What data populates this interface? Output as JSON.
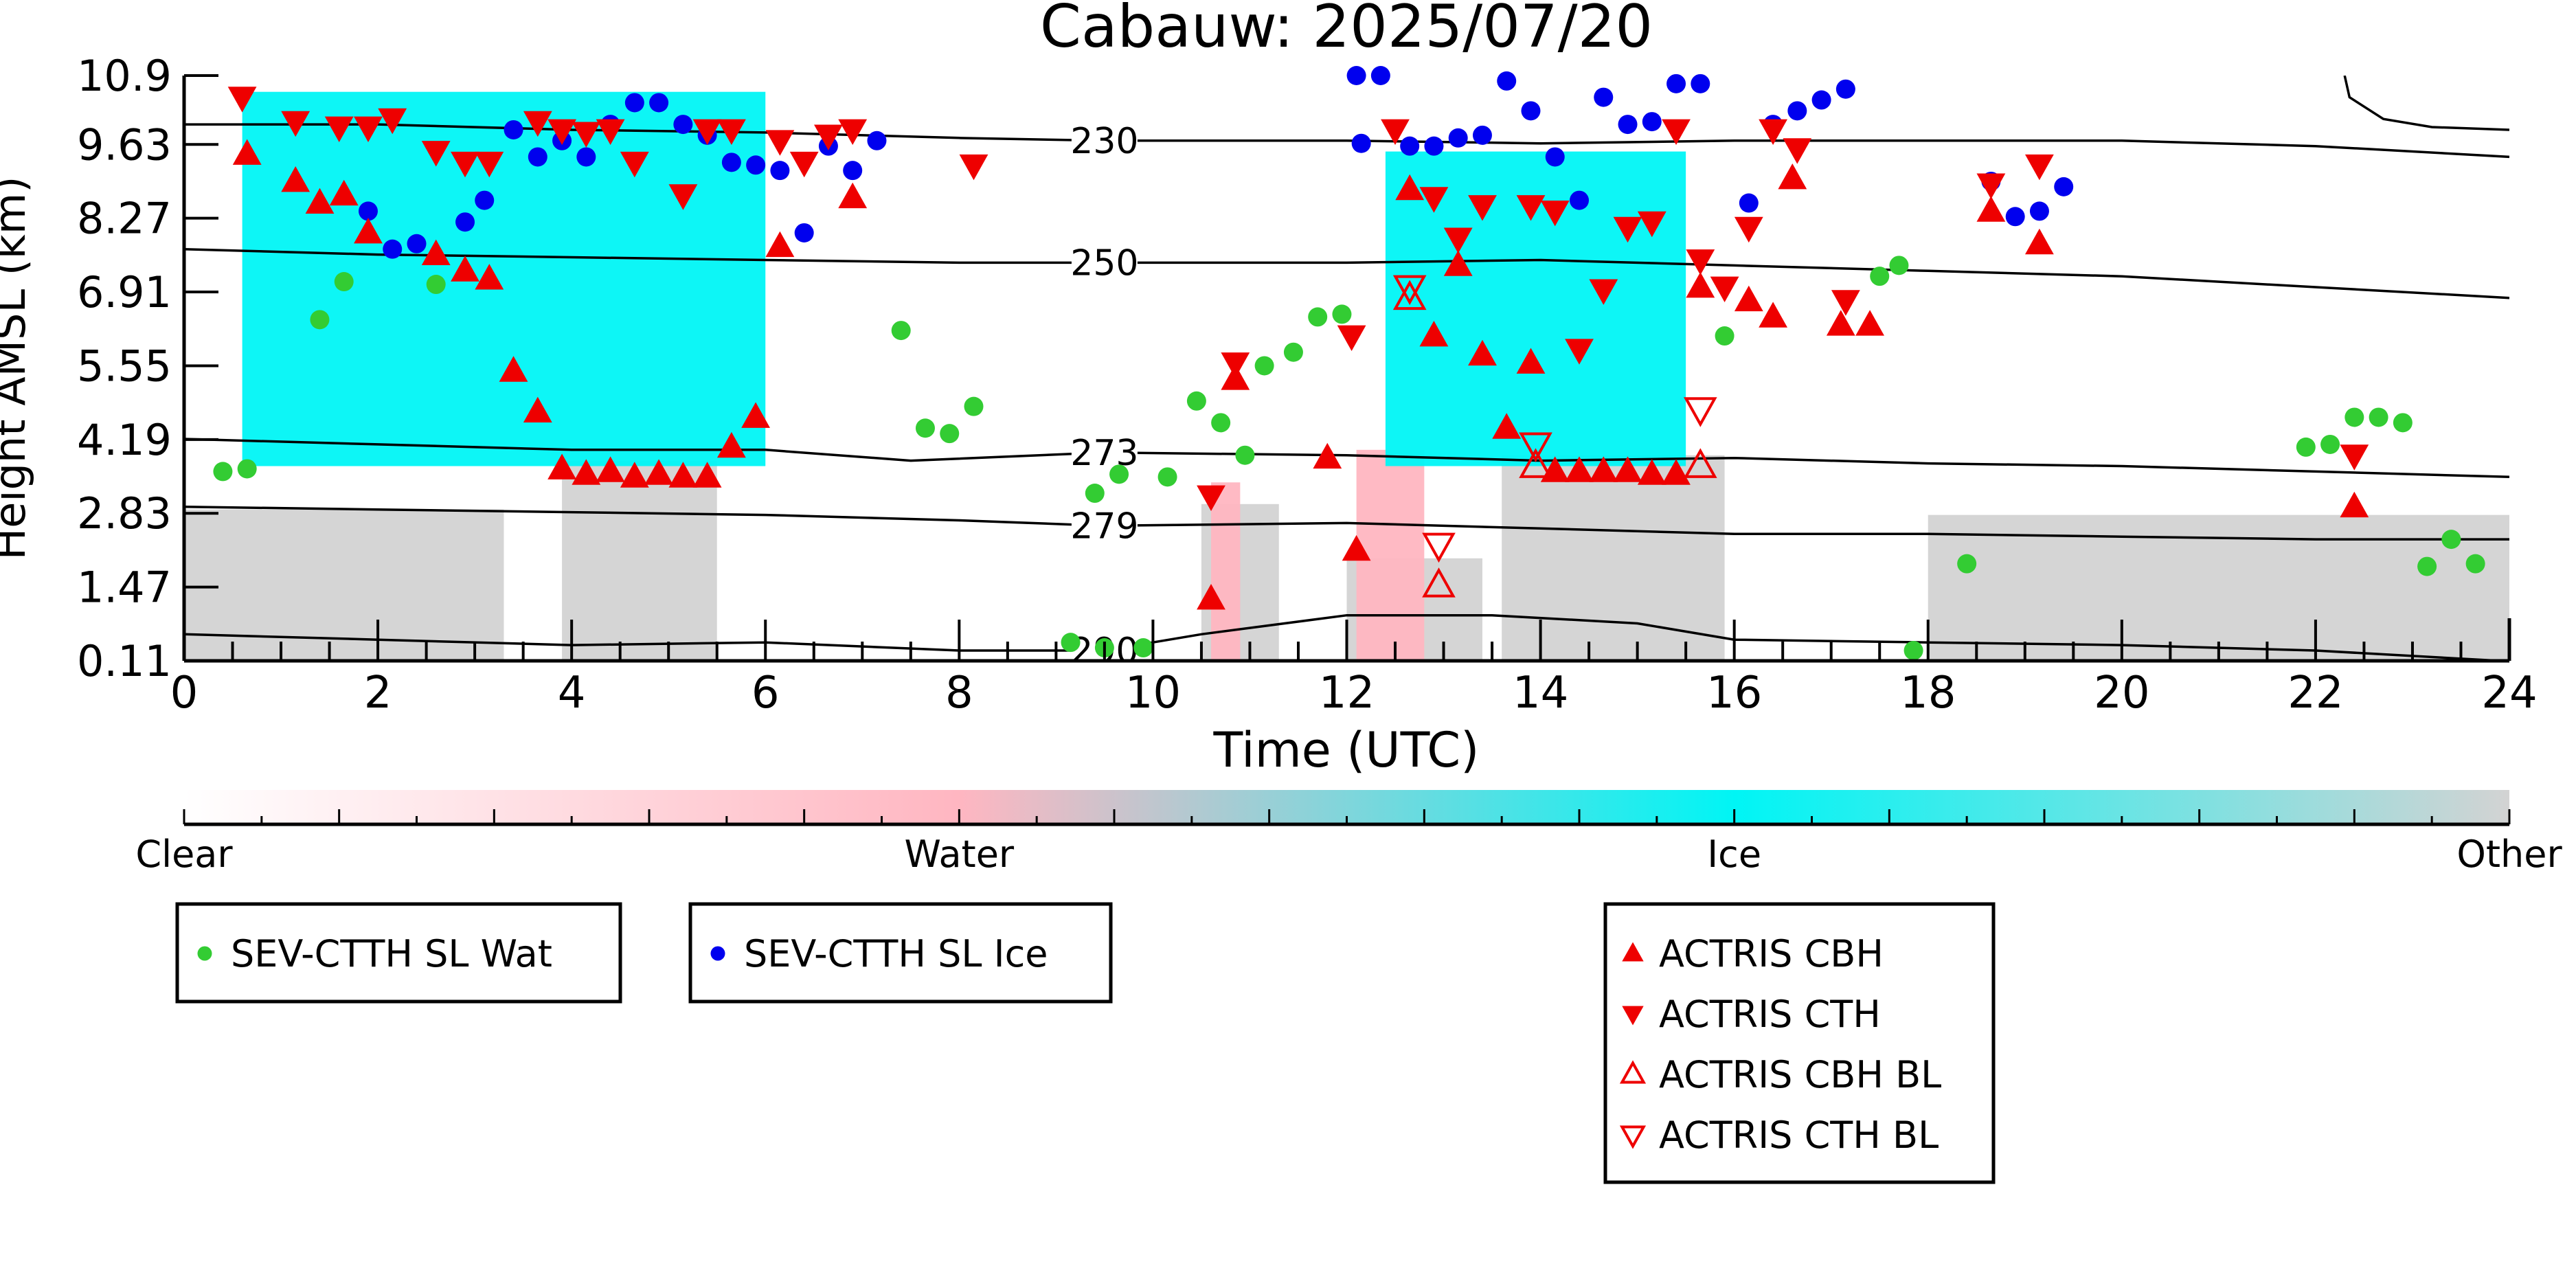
{
  "chart_data": {
    "type": "scatter",
    "title": "Cabauw: 2025/07/20",
    "xlabel": "Time (UTC)",
    "ylabel": "Height AMSL (km)",
    "xlim": [
      0,
      24
    ],
    "ylim": [
      0.11,
      10.9
    ],
    "xticks": [
      "0",
      "2",
      "4",
      "6",
      "8",
      "10",
      "12",
      "14",
      "16",
      "18",
      "20",
      "22",
      "24"
    ],
    "yticks": [
      "0.11",
      "1.47",
      "2.83",
      "4.19",
      "5.55",
      "6.91",
      "8.27",
      "9.63",
      "10.9"
    ],
    "grid": false,
    "colorbar": {
      "labels": [
        "Clear",
        "Water",
        "Ice",
        "Other"
      ],
      "colors": [
        "#ffffff",
        "#ffb6c1",
        "#00f5f5",
        "#d3d3d3"
      ]
    },
    "background_regions": [
      {
        "category": "Other",
        "x": [
          0.0,
          3.3
        ],
        "ytop": 2.9
      },
      {
        "category": "Other",
        "x": [
          3.9,
          5.5
        ],
        "ytop": 3.8
      },
      {
        "category": "Other",
        "x": [
          10.5,
          11.3
        ],
        "ytop": 3.0
      },
      {
        "category": "Other",
        "x": [
          12.0,
          13.4
        ],
        "ytop": 2.0
      },
      {
        "category": "Other",
        "x": [
          13.6,
          15.9
        ],
        "ytop": 3.9
      },
      {
        "category": "Other",
        "x": [
          18.0,
          24.0
        ],
        "ytop": 2.8
      },
      {
        "category": "Water",
        "x": [
          10.6,
          10.9
        ],
        "ytop": 3.4
      },
      {
        "category": "Water",
        "x": [
          12.1,
          12.8
        ],
        "ytop": 4.0
      },
      {
        "category": "Ice",
        "x": [
          0.6,
          6.0
        ],
        "ybottom": 3.7,
        "ytop": 10.6
      },
      {
        "category": "Ice",
        "x": [
          12.4,
          15.5
        ],
        "ybottom": 3.7,
        "ytop": 9.5
      }
    ],
    "isotherms": [
      {
        "label": "230",
        "x": [
          0,
          2,
          4,
          6,
          8,
          9.5,
          12,
          14,
          16,
          18,
          20,
          22,
          24
        ],
        "y": [
          10.0,
          10.0,
          9.9,
          9.85,
          9.75,
          9.7,
          9.7,
          9.65,
          9.7,
          9.7,
          9.7,
          9.6,
          9.4
        ]
      },
      {
        "label": "250",
        "x": [
          0,
          2,
          4,
          6,
          8,
          9.5,
          12,
          14,
          16,
          18,
          20,
          22,
          24
        ],
        "y": [
          7.7,
          7.6,
          7.55,
          7.5,
          7.45,
          7.45,
          7.45,
          7.5,
          7.4,
          7.3,
          7.2,
          7.0,
          6.8
        ]
      },
      {
        "label": "273",
        "x": [
          0,
          2,
          4,
          6,
          7.5,
          9.5,
          12,
          14,
          16,
          18,
          20,
          22,
          24
        ],
        "y": [
          4.2,
          4.1,
          4.0,
          4.0,
          3.8,
          3.95,
          3.9,
          3.8,
          3.85,
          3.75,
          3.7,
          3.6,
          3.5
        ]
      },
      {
        "label": "279",
        "x": [
          0,
          2,
          4,
          6,
          8,
          9.5,
          12,
          14,
          16,
          18,
          20,
          22,
          24
        ],
        "y": [
          2.95,
          2.9,
          2.85,
          2.8,
          2.7,
          2.6,
          2.65,
          2.55,
          2.45,
          2.45,
          2.4,
          2.35,
          2.35
        ]
      },
      {
        "label": "290",
        "x": [
          0,
          2,
          4,
          6,
          8,
          9.5,
          10.5,
          12,
          13.5,
          15,
          16,
          18,
          20,
          22,
          24
        ],
        "y": [
          0.6,
          0.5,
          0.4,
          0.45,
          0.3,
          0.3,
          0.6,
          0.95,
          0.95,
          0.8,
          0.5,
          0.45,
          0.4,
          0.3,
          0.1
        ]
      },
      {
        "label": "",
        "x": [
          22.3,
          22.35,
          22.7,
          23.2,
          24
        ],
        "y": [
          10.9,
          10.5,
          10.1,
          9.95,
          9.9
        ]
      }
    ],
    "series": [
      {
        "name": "SEV-CTTH SL Wat",
        "marker": "circle",
        "color": "#33cc33",
        "x": [
          0.4,
          0.65,
          1.4,
          1.65,
          2.6,
          7.4,
          7.65,
          7.9,
          8.15,
          9.15,
          9.4,
          9.5,
          9.65,
          9.9,
          10.15,
          10.45,
          10.7,
          10.95,
          11.15,
          11.45,
          11.7,
          11.95,
          15.9,
          17.5,
          17.7,
          18.4,
          17.85,
          21.9,
          22.15,
          22.4,
          22.65,
          22.9,
          23.15,
          23.4,
          23.65
        ],
        "y": [
          3.6,
          3.65,
          6.4,
          7.1,
          7.05,
          6.2,
          4.4,
          4.3,
          4.8,
          0.45,
          3.2,
          0.35,
          3.55,
          0.35,
          3.5,
          4.9,
          4.5,
          3.9,
          5.55,
          5.8,
          6.45,
          6.5,
          6.1,
          7.2,
          7.4,
          1.9,
          0.3,
          4.05,
          4.1,
          4.6,
          4.6,
          4.5,
          1.85,
          2.35,
          1.9
        ]
      },
      {
        "name": "SEV-CTTH SL Ice",
        "marker": "circle",
        "color": "#0000ee",
        "x": [
          1.9,
          2.15,
          2.4,
          2.9,
          3.1,
          3.4,
          3.65,
          3.9,
          4.15,
          4.4,
          4.65,
          4.9,
          5.15,
          5.4,
          5.65,
          5.9,
          6.15,
          6.4,
          6.65,
          6.9,
          7.15,
          12.1,
          12.35,
          12.65,
          12.9,
          12.15,
          13.15,
          13.4,
          13.65,
          13.9,
          14.15,
          14.4,
          14.65,
          14.9,
          15.15,
          15.4,
          15.65,
          16.15,
          16.4,
          16.65,
          16.9,
          17.15,
          18.65,
          18.9,
          19.15,
          19.4
        ],
        "y": [
          8.4,
          7.7,
          7.8,
          8.2,
          8.6,
          9.9,
          9.4,
          9.7,
          9.4,
          10.0,
          10.4,
          10.4,
          10.0,
          9.8,
          9.3,
          9.25,
          9.15,
          8.0,
          9.6,
          9.15,
          9.7,
          10.9,
          10.9,
          9.6,
          9.6,
          9.65,
          9.75,
          9.8,
          10.8,
          10.25,
          9.4,
          8.6,
          10.5,
          10.0,
          10.05,
          10.75,
          10.75,
          8.55,
          10.0,
          10.25,
          10.45,
          10.65,
          8.95,
          8.3,
          8.4,
          8.85
        ]
      },
      {
        "name": "ACTRIS CBH",
        "marker": "triangle-up",
        "color": "#ee0000",
        "x": [
          0.65,
          1.15,
          1.4,
          1.65,
          1.9,
          2.6,
          2.9,
          3.15,
          3.4,
          3.65,
          3.9,
          4.15,
          4.4,
          4.65,
          4.9,
          5.15,
          5.4,
          5.65,
          5.9,
          6.15,
          10.6,
          10.85,
          11.8,
          12.1,
          12.65,
          12.9,
          13.15,
          13.4,
          13.65,
          13.9,
          14.15,
          14.4,
          14.65,
          14.9,
          15.15,
          15.4,
          15.65,
          16.4,
          16.15,
          6.9,
          16.6,
          17.1,
          17.4,
          18.65,
          19.15,
          22.4
        ],
        "y": [
          9.45,
          8.95,
          8.55,
          8.7,
          8.0,
          7.6,
          7.3,
          7.15,
          5.45,
          4.7,
          3.65,
          3.55,
          3.6,
          3.5,
          3.55,
          3.5,
          3.5,
          4.05,
          4.6,
          7.75,
          1.25,
          5.3,
          3.85,
          2.15,
          8.8,
          6.1,
          7.4,
          5.75,
          4.4,
          5.6,
          3.6,
          3.6,
          3.6,
          3.6,
          3.55,
          3.55,
          7.0,
          6.45,
          6.75,
          8.65,
          9.0,
          6.3,
          6.3,
          8.4,
          7.8,
          2.95
        ]
      },
      {
        "name": "ACTRIS CTH",
        "marker": "triangle-down",
        "color": "#ee0000",
        "x": [
          0.6,
          1.15,
          1.6,
          1.9,
          2.15,
          2.6,
          2.9,
          3.15,
          3.65,
          3.9,
          4.15,
          4.4,
          4.65,
          5.15,
          5.4,
          5.65,
          6.15,
          6.4,
          6.65,
          6.9,
          8.15,
          10.6,
          10.85,
          12.05,
          12.5,
          12.9,
          13.15,
          13.4,
          13.9,
          14.15,
          14.4,
          14.65,
          14.9,
          15.15,
          15.4,
          15.65,
          15.9,
          16.15,
          16.4,
          16.65,
          17.15,
          18.65,
          19.15,
          22.4
        ],
        "y": [
          10.5,
          10.05,
          9.95,
          9.95,
          10.1,
          9.5,
          9.3,
          9.3,
          10.05,
          9.9,
          9.85,
          9.9,
          9.3,
          8.7,
          9.9,
          9.9,
          9.7,
          9.3,
          9.8,
          9.9,
          9.25,
          3.15,
          5.6,
          6.1,
          9.9,
          8.65,
          7.9,
          8.5,
          8.5,
          8.4,
          5.85,
          6.95,
          8.1,
          8.2,
          9.9,
          7.5,
          7.0,
          8.1,
          9.9,
          9.55,
          6.75,
          8.9,
          9.25,
          3.9
        ]
      },
      {
        "name": "ACTRIS CBH BL",
        "marker": "triangle-up-open",
        "color": "#ee0000",
        "x": [
          12.65,
          12.95,
          13.95,
          15.65
        ],
        "y": [
          6.8,
          1.5,
          3.7,
          3.7
        ]
      },
      {
        "name": "ACTRIS CTH BL",
        "marker": "triangle-down-open",
        "color": "#ee0000",
        "x": [
          12.65,
          12.95,
          13.95,
          15.65
        ],
        "y": [
          7.0,
          2.25,
          4.1,
          4.75
        ]
      }
    ]
  }
}
